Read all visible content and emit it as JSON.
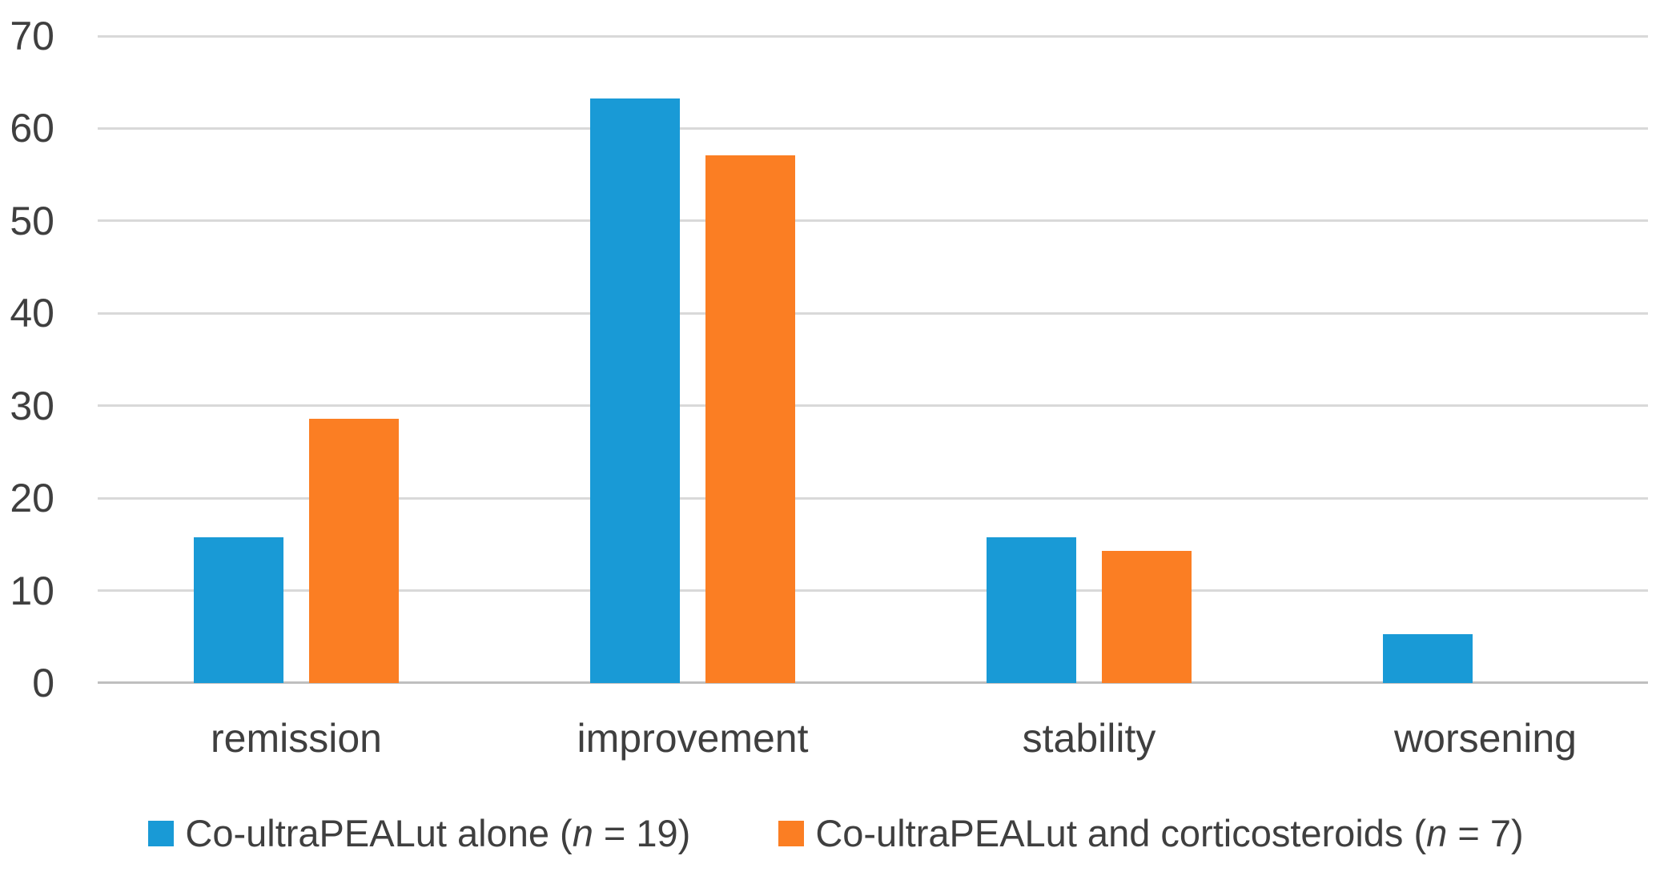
{
  "chart_data": {
    "type": "bar",
    "title": "",
    "xlabel": "",
    "ylabel": "",
    "categories": [
      "remission",
      "improvement",
      "stability",
      "worsening"
    ],
    "series": [
      {
        "name": "Co-ultraPEALut alone (n = 19)",
        "color": "#199AD6",
        "values": [
          15.8,
          63.2,
          15.8,
          5.3
        ]
      },
      {
        "name": "Co-ultraPEALut and corticosteroids (n = 7)",
        "color": "#FB7E23",
        "values": [
          28.6,
          57.1,
          14.3,
          0
        ]
      }
    ],
    "ylim": [
      0,
      70
    ],
    "yticks": [
      0,
      10,
      20,
      30,
      40,
      50,
      60,
      70
    ],
    "grid": true,
    "legend_position": "bottom"
  },
  "legend": {
    "items": [
      {
        "swatch": "blue-square",
        "swatch_color": "#199AD6",
        "prefix": "Co-ultraPEALut alone (",
        "variable": "n",
        "suffix": " = 19)"
      },
      {
        "swatch": "orange-square",
        "swatch_color": "#FB7E23",
        "prefix": "Co-ultraPEALut and corticosteroids (",
        "variable": "n",
        "suffix": " = 7)"
      }
    ]
  },
  "colors": {
    "series_blue": "#199AD6",
    "series_orange": "#FB7E23",
    "gridline": "#D9D9D9",
    "axis_line": "#BFBFBF",
    "text": "#3F3F3F",
    "background": "#FFFFFF"
  }
}
